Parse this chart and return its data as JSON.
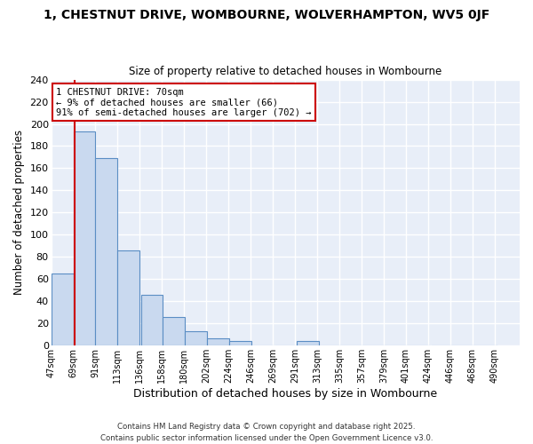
{
  "title": "1, CHESTNUT DRIVE, WOMBOURNE, WOLVERHAMPTON, WV5 0JF",
  "subtitle": "Size of property relative to detached houses in Wombourne",
  "xlabel": "Distribution of detached houses by size in Wombourne",
  "ylabel": "Number of detached properties",
  "bar_left_edges": [
    47,
    69,
    91,
    113,
    136,
    158,
    180,
    202,
    224,
    246,
    269,
    291,
    313,
    335,
    357,
    379,
    401,
    424,
    446,
    468
  ],
  "bar_heights": [
    65,
    193,
    169,
    86,
    46,
    26,
    13,
    7,
    4,
    0,
    0,
    4,
    0,
    0,
    0,
    0,
    0,
    0,
    0,
    0
  ],
  "bin_width": 22,
  "bar_facecolor": "#c9d9ef",
  "bar_edgecolor": "#5b8ec4",
  "xtick_labels": [
    "47sqm",
    "69sqm",
    "91sqm",
    "113sqm",
    "136sqm",
    "158sqm",
    "180sqm",
    "202sqm",
    "224sqm",
    "246sqm",
    "269sqm",
    "291sqm",
    "313sqm",
    "335sqm",
    "357sqm",
    "379sqm",
    "401sqm",
    "424sqm",
    "446sqm",
    "468sqm",
    "490sqm"
  ],
  "ylim": [
    0,
    240
  ],
  "yticks": [
    0,
    20,
    40,
    60,
    80,
    100,
    120,
    140,
    160,
    180,
    200,
    220,
    240
  ],
  "vline_x": 70,
  "vline_color": "#cc0000",
  "annotation_text": "1 CHESTNUT DRIVE: 70sqm\n← 9% of detached houses are smaller (66)\n91% of semi-detached houses are larger (702) →",
  "annotation_box_facecolor": "#ffffff",
  "annotation_box_edgecolor": "#cc0000",
  "annotation_fontsize": 7.5,
  "fig_facecolor": "#ffffff",
  "ax_facecolor": "#e8eef8",
  "grid_color": "#ffffff",
  "title_fontsize": 10,
  "subtitle_fontsize": 8.5,
  "footer_line1": "Contains HM Land Registry data © Crown copyright and database right 2025.",
  "footer_line2": "Contains public sector information licensed under the Open Government Licence v3.0."
}
